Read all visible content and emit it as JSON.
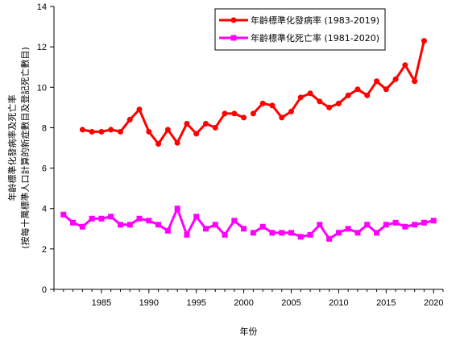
{
  "chart_data": {
    "type": "line",
    "xlabel": "年份",
    "ylabel_lines": [
      "年齡標準化發病率及死亡率",
      "(按每十萬標準人口計算的新症數目及登記死亡數目)"
    ],
    "xlim": [
      1980,
      2021
    ],
    "ylim": [
      0,
      14
    ],
    "x_ticks": [
      1985,
      1990,
      1995,
      2000,
      2005,
      2010,
      2015,
      2020
    ],
    "y_ticks": [
      0,
      2,
      4,
      6,
      8,
      10,
      12,
      14
    ],
    "grid": false,
    "legend_position": "top-right",
    "series": [
      {
        "name": "年齡標準化發病率 (1983-2019)",
        "color": "#ff0000",
        "marker": "circle",
        "segments": [
          {
            "x": [
              1983,
              1984,
              1985,
              1986,
              1987,
              1988,
              1989,
              1990,
              1991,
              1992,
              1993,
              1994,
              1995,
              1996,
              1997,
              1998,
              1999,
              2000
            ],
            "y": [
              7.9,
              7.8,
              7.8,
              7.9,
              7.8,
              8.4,
              8.9,
              7.8,
              7.2,
              7.9,
              7.25,
              8.2,
              7.7,
              8.2,
              8.0,
              8.7,
              8.7,
              8.5
            ]
          },
          {
            "x": [
              2001,
              2002,
              2003,
              2004,
              2005,
              2006,
              2007,
              2008,
              2009,
              2010,
              2011,
              2012,
              2013,
              2014,
              2015,
              2016,
              2017,
              2018,
              2019
            ],
            "y": [
              8.7,
              9.2,
              9.1,
              8.5,
              8.8,
              9.5,
              9.7,
              9.3,
              9.0,
              9.2,
              9.6,
              9.9,
              9.6,
              10.3,
              9.9,
              10.4,
              11.1,
              10.3,
              12.3
            ]
          }
        ]
      },
      {
        "name": "年齡標準化死亡率 (1981-2020)",
        "color": "#ff00ff",
        "marker": "square",
        "segments": [
          {
            "x": [
              1981,
              1982,
              1983,
              1984,
              1985,
              1986,
              1987,
              1988,
              1989,
              1990,
              1991,
              1992,
              1993,
              1994,
              1995,
              1996,
              1997,
              1998,
              1999,
              2000
            ],
            "y": [
              3.7,
              3.3,
              3.1,
              3.5,
              3.5,
              3.6,
              3.2,
              3.2,
              3.5,
              3.4,
              3.2,
              2.9,
              4.0,
              2.7,
              3.6,
              3.0,
              3.2,
              2.7,
              3.4,
              3.0
            ]
          },
          {
            "x": [
              2001,
              2002,
              2003,
              2004,
              2005,
              2006,
              2007,
              2008,
              2009,
              2010,
              2011,
              2012,
              2013,
              2014,
              2015,
              2016,
              2017,
              2018,
              2019,
              2020
            ],
            "y": [
              2.8,
              3.1,
              2.8,
              2.8,
              2.8,
              2.6,
              2.7,
              3.2,
              2.5,
              2.8,
              3.0,
              2.8,
              3.2,
              2.8,
              3.2,
              3.3,
              3.1,
              3.2,
              3.3,
              3.4
            ]
          }
        ]
      }
    ]
  }
}
